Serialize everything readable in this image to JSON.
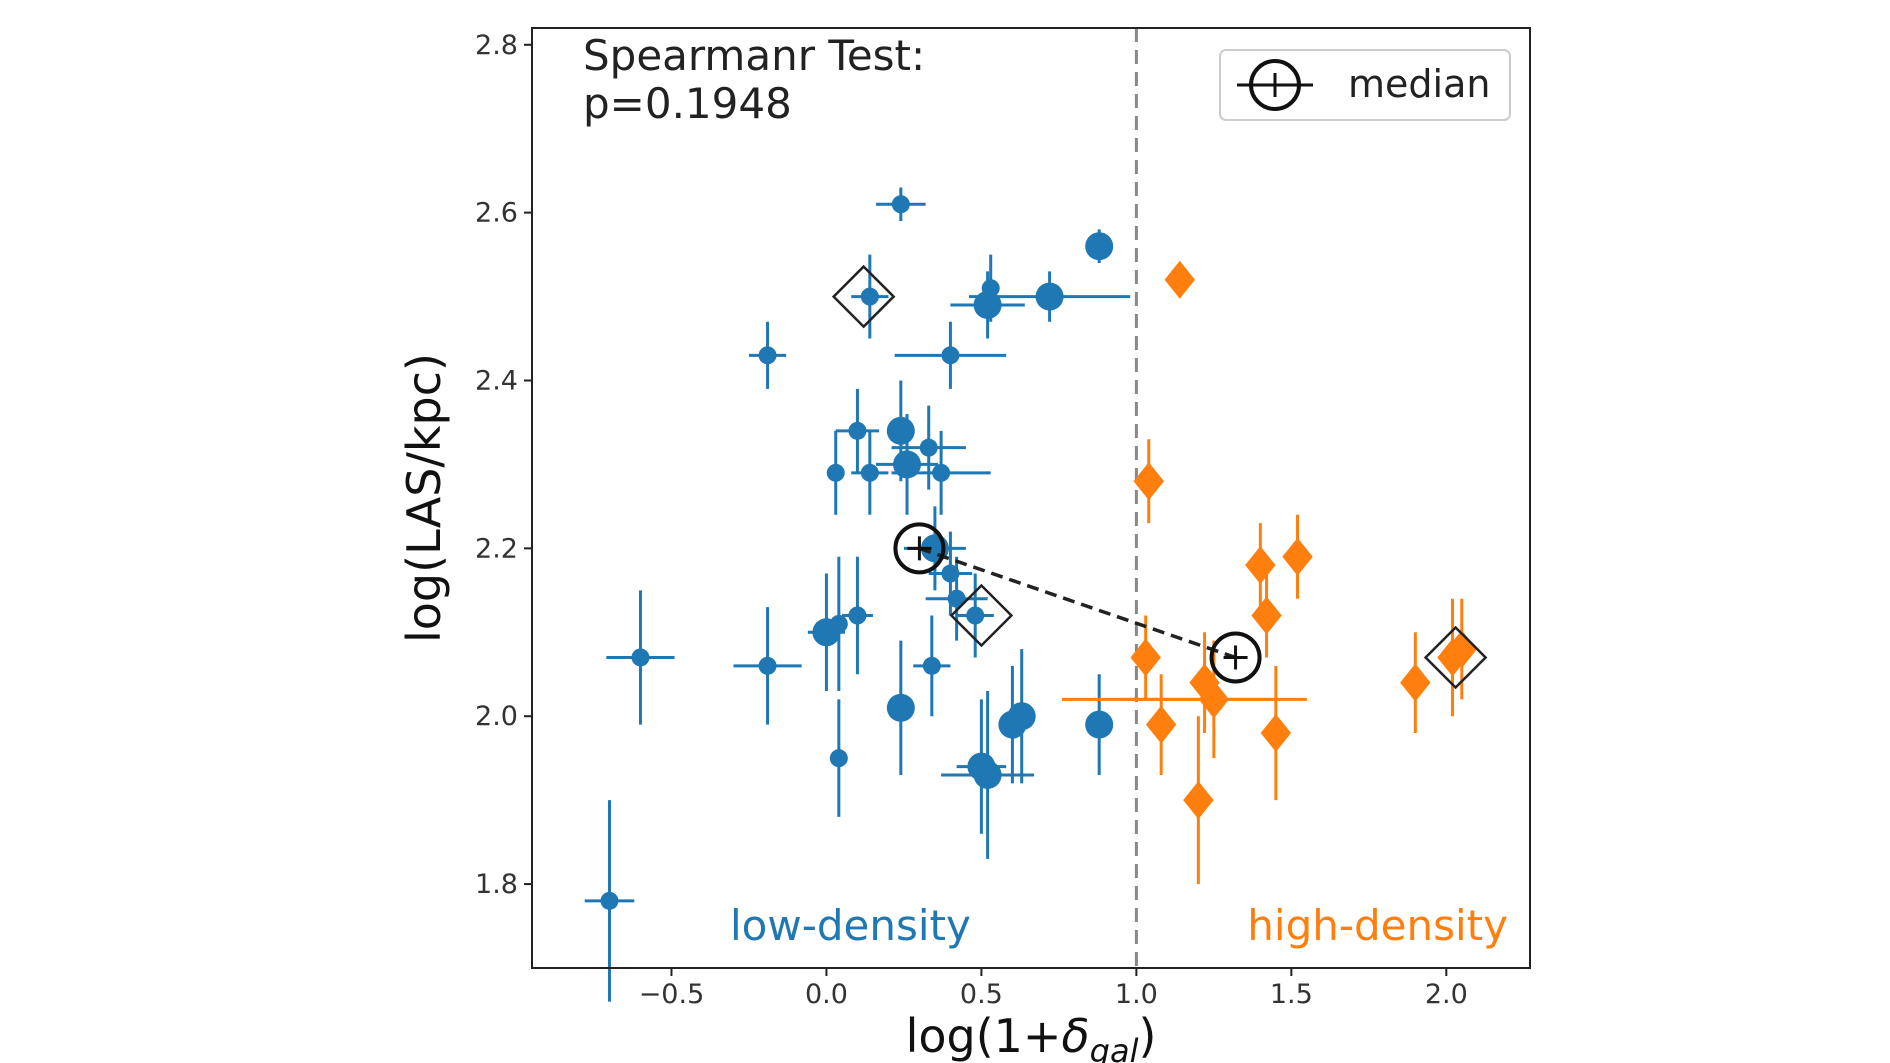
{
  "colors": {
    "low": "#1f77b4",
    "high": "#ff7f0e",
    "median": "#111111",
    "divider": "#888888",
    "axis": "#222222"
  },
  "chart_data": {
    "type": "scatter",
    "xlabel_main": "log(1+",
    "xlabel_delta": "δ",
    "xlabel_sub": "gal",
    "xlabel_close": ")",
    "ylabel": "log(LAS/kpc)",
    "xlim": [
      -0.95,
      2.27
    ],
    "ylim": [
      1.7,
      2.82
    ],
    "xticks": [
      -0.5,
      0.0,
      0.5,
      1.0,
      1.5,
      2.0
    ],
    "xtick_labels": [
      "−0.5",
      "0.0",
      "0.5",
      "1.0",
      "1.5",
      "2.0"
    ],
    "yticks": [
      1.8,
      2.0,
      2.2,
      2.4,
      2.6,
      2.8
    ],
    "ytick_labels": [
      "1.8",
      "2.0",
      "2.2",
      "2.4",
      "2.6",
      "2.8"
    ],
    "divider_x": 1.0,
    "annotation_line1": "Spearmanr Test:",
    "annotation_line2": "p=0.1948",
    "legend_label": "median",
    "legend_position": "upper right",
    "region_labels": {
      "low": "low-density",
      "high": "high-density"
    },
    "series": [
      {
        "group": "low",
        "marker": "circle",
        "points": [
          {
            "x": 0.24,
            "y": 2.61,
            "xerr": 0.08,
            "yerr": 0.02,
            "s": "small"
          },
          {
            "x": 0.88,
            "y": 2.56,
            "xerr": 0,
            "yerr": 0.02,
            "s": "large"
          },
          {
            "x": 0.14,
            "y": 2.5,
            "xerr": 0.06,
            "yerr": 0.05,
            "s": "small"
          },
          {
            "x": 0.52,
            "y": 2.49,
            "xerr": 0.12,
            "yerr": 0.04,
            "s": "large"
          },
          {
            "x": 0.53,
            "y": 2.51,
            "xerr": 0,
            "yerr": 0.04,
            "s": "small"
          },
          {
            "x": 0.72,
            "y": 2.5,
            "xerr": 0.26,
            "yerr": 0.03,
            "s": "large"
          },
          {
            "x": -0.19,
            "y": 2.43,
            "xerr": 0.06,
            "yerr": 0.04,
            "s": "small"
          },
          {
            "x": 0.4,
            "y": 2.43,
            "xerr": 0.18,
            "yerr": 0.04,
            "s": "small"
          },
          {
            "x": 0.1,
            "y": 2.34,
            "xerr": 0.07,
            "yerr": 0.05,
            "s": "small"
          },
          {
            "x": 0.24,
            "y": 2.34,
            "xerr": 0,
            "yerr": 0.06,
            "s": "large"
          },
          {
            "x": 0.33,
            "y": 2.32,
            "xerr": 0.12,
            "yerr": 0.05,
            "s": "small"
          },
          {
            "x": 0.03,
            "y": 2.29,
            "xerr": 0,
            "yerr": 0.05,
            "s": "small"
          },
          {
            "x": 0.14,
            "y": 2.29,
            "xerr": 0.06,
            "yerr": 0.05,
            "s": "small"
          },
          {
            "x": 0.26,
            "y": 2.3,
            "xerr": 0.1,
            "yerr": 0.06,
            "s": "large"
          },
          {
            "x": 0.37,
            "y": 2.29,
            "xerr": 0.16,
            "yerr": 0.05,
            "s": "small"
          },
          {
            "x": 0.35,
            "y": 2.2,
            "xerr": 0.1,
            "yerr": 0.05,
            "s": "large"
          },
          {
            "x": 0.4,
            "y": 2.17,
            "xerr": 0.07,
            "yerr": 0.05,
            "s": "small"
          },
          {
            "x": 0.42,
            "y": 2.14,
            "xerr": 0.1,
            "yerr": 0.05,
            "s": "small"
          },
          {
            "x": 0.48,
            "y": 2.12,
            "xerr": 0.06,
            "yerr": 0.05,
            "s": "small"
          },
          {
            "x": 0.0,
            "y": 2.1,
            "xerr": 0.06,
            "yerr": 0.07,
            "s": "large"
          },
          {
            "x": 0.04,
            "y": 2.11,
            "xerr": 0,
            "yerr": 0.08,
            "s": "small"
          },
          {
            "x": 0.1,
            "y": 2.12,
            "xerr": 0.05,
            "yerr": 0.07,
            "s": "small"
          },
          {
            "x": -0.6,
            "y": 2.07,
            "xerr": 0.11,
            "yerr": 0.08,
            "s": "small"
          },
          {
            "x": -0.19,
            "y": 2.06,
            "xerr": 0.11,
            "yerr": 0.07,
            "s": "small"
          },
          {
            "x": 0.34,
            "y": 2.06,
            "xerr": 0.06,
            "yerr": 0.06,
            "s": "small"
          },
          {
            "x": 0.24,
            "y": 2.01,
            "xerr": 0,
            "yerr": 0.08,
            "s": "large"
          },
          {
            "x": 0.6,
            "y": 1.99,
            "xerr": 0.04,
            "yerr": 0.07,
            "s": "large"
          },
          {
            "x": 0.63,
            "y": 2.0,
            "xerr": 0,
            "yerr": 0.08,
            "s": "large"
          },
          {
            "x": 0.88,
            "y": 1.99,
            "xerr": 0,
            "yerr": 0.06,
            "s": "large"
          },
          {
            "x": 0.04,
            "y": 1.95,
            "xerr": 0,
            "yerr": 0.07,
            "s": "small"
          },
          {
            "x": 0.5,
            "y": 1.94,
            "xerr": 0.08,
            "yerr": 0.08,
            "s": "large"
          },
          {
            "x": 0.52,
            "y": 1.93,
            "xerr": 0.15,
            "yerr": 0.1,
            "s": "large"
          },
          {
            "x": -0.7,
            "y": 1.78,
            "xerr": 0.08,
            "yerr": 0.12,
            "s": "small"
          }
        ]
      },
      {
        "group": "high",
        "marker": "diamond",
        "points": [
          {
            "x": 1.14,
            "y": 2.52,
            "xerr": 0,
            "yerr": 0,
            "s": "large"
          },
          {
            "x": 1.04,
            "y": 2.28,
            "xerr": 0,
            "yerr": 0.05,
            "s": "large"
          },
          {
            "x": 1.52,
            "y": 2.19,
            "xerr": 0,
            "yerr": 0.05,
            "s": "large"
          },
          {
            "x": 1.4,
            "y": 2.18,
            "xerr": 0,
            "yerr": 0.05,
            "s": "large"
          },
          {
            "x": 1.42,
            "y": 2.12,
            "xerr": 0,
            "yerr": 0.05,
            "s": "large"
          },
          {
            "x": 1.03,
            "y": 2.07,
            "xerr": 0,
            "yerr": 0.05,
            "s": "large"
          },
          {
            "x": 1.22,
            "y": 2.04,
            "xerr": 0,
            "yerr": 0.06,
            "s": "large"
          },
          {
            "x": 1.25,
            "y": 2.02,
            "xerr": 0.3,
            "yerr": 0.07,
            "s": "large"
          },
          {
            "x": 1.08,
            "y": 1.99,
            "xerr": 0,
            "yerr": 0.06,
            "s": "large"
          },
          {
            "x": 1.45,
            "y": 1.98,
            "xerr": 0,
            "yerr": 0.08,
            "s": "large"
          },
          {
            "x": 1.2,
            "y": 1.9,
            "xerr": 0,
            "yerr": 0.1,
            "s": "large"
          },
          {
            "x": 1.9,
            "y": 2.04,
            "xerr": 0,
            "yerr": 0.06,
            "s": "large"
          },
          {
            "x": 2.02,
            "y": 2.07,
            "xerr": 0,
            "yerr": 0.07,
            "s": "large"
          },
          {
            "x": 2.05,
            "y": 2.08,
            "xerr": 0,
            "yerr": 0.06,
            "s": "large"
          }
        ],
        "extra_errorbars": [
          {
            "x": 0.88,
            "y": 2.02,
            "xerr_lo": -0.12,
            "xerr_hi": 0.55
          }
        ]
      }
    ],
    "open_diamonds": [
      {
        "x": 0.12,
        "y": 2.5
      },
      {
        "x": 0.5,
        "y": 2.12
      },
      {
        "x": 2.03,
        "y": 2.07
      }
    ],
    "medians": [
      {
        "x": 0.3,
        "y": 2.2
      },
      {
        "x": 1.32,
        "y": 2.07
      }
    ]
  }
}
